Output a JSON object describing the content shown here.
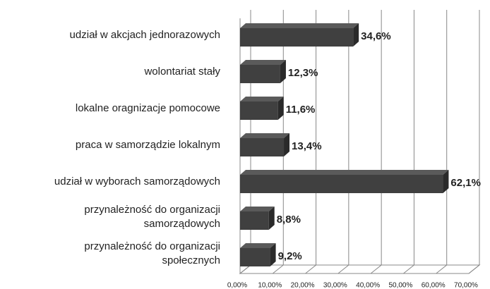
{
  "chart_data": {
    "type": "bar",
    "orientation": "horizontal",
    "categories": [
      "udział w akcjach jednorazowych",
      "wolontariat stały",
      "lokalne oragnizacje pomocowe",
      "praca w samorządzie lokalnym",
      "udział w wyborach samorządowych",
      "przynależność do organizacji\nsamorządowych",
      "przynależność do organizacji\nspołecznych"
    ],
    "values": [
      34.6,
      12.3,
      11.6,
      13.4,
      62.1,
      8.8,
      9.2
    ],
    "value_labels": [
      "34,6%",
      "12,3%",
      "11,6%",
      "13,4%",
      "62,1%",
      "8,8%",
      "9,2%"
    ],
    "color": "#404040",
    "xlim": [
      0,
      70
    ],
    "xticks": [
      {
        "value": 0,
        "label": "0,00%"
      },
      {
        "value": 10,
        "label": "10,00%"
      },
      {
        "value": 20,
        "label": "20,00%"
      },
      {
        "value": 30,
        "label": "30,00%"
      },
      {
        "value": 40,
        "label": "40,00%"
      },
      {
        "value": 50,
        "label": "50,00%"
      },
      {
        "value": 60,
        "label": "60,00%"
      },
      {
        "value": 70,
        "label": "70,00%"
      }
    ],
    "grid": true
  }
}
